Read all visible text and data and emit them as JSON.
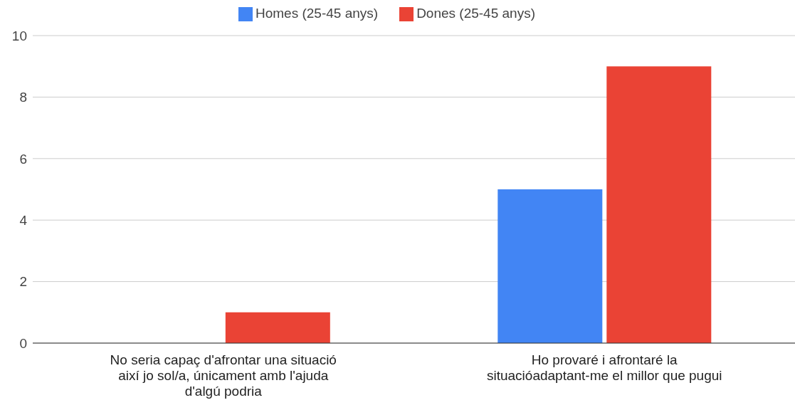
{
  "chart_data": {
    "type": "bar",
    "categories": [
      "No seria capaç d'afrontar una situació així jo sol/a, únicament amb l'ajuda d'algú podria",
      "Ho provaré i afrontaré la situacióadaptant-me el millor que pugui"
    ],
    "series": [
      {
        "name": "Homes (25-45 anys)",
        "color": "#4285f4",
        "values": [
          0,
          5
        ]
      },
      {
        "name": "Dones (25-45 anys)",
        "color": "#ea4335",
        "values": [
          1,
          9
        ]
      }
    ],
    "ylim": [
      0,
      10
    ],
    "yticks": [
      0,
      2,
      4,
      6,
      8,
      10
    ],
    "grid": "y",
    "legend": "top"
  }
}
